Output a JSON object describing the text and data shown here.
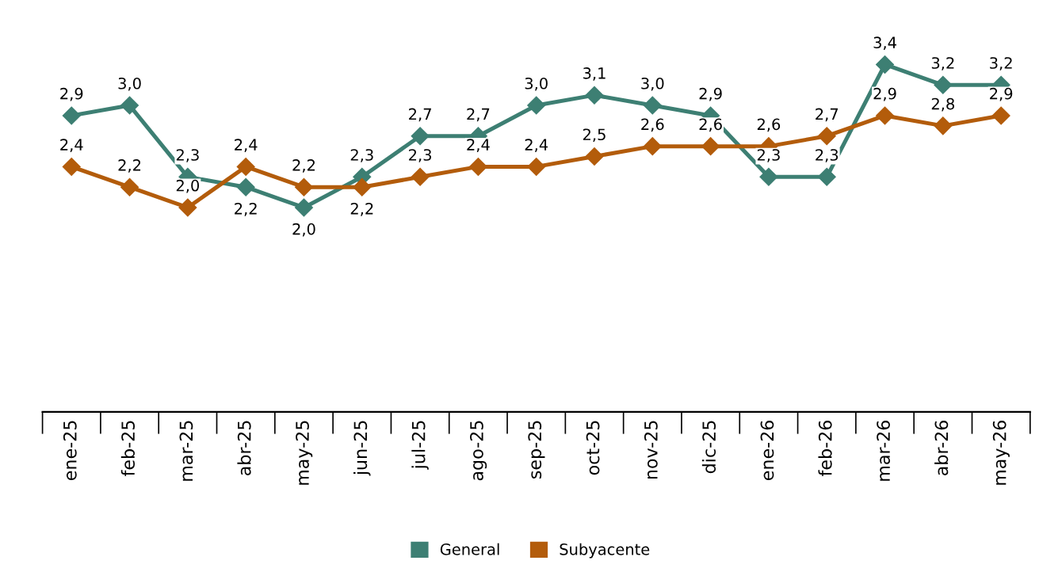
{
  "chart_data": {
    "type": "line",
    "categories": [
      "ene-25",
      "feb-25",
      "mar-25",
      "abr-25",
      "may-25",
      "jun-25",
      "jul-25",
      "ago-25",
      "sep-25",
      "oct-25",
      "nov-25",
      "dic-25",
      "ene-26",
      "feb-26",
      "mar-26",
      "abr-26",
      "may-26"
    ],
    "series": [
      {
        "name": "General",
        "color": "#3d7f73",
        "values": [
          2.9,
          3.0,
          2.3,
          2.2,
          2.0,
          2.3,
          2.7,
          2.7,
          3.0,
          3.1,
          3.0,
          2.9,
          2.3,
          2.3,
          3.4,
          3.2,
          3.2
        ],
        "value_labels": [
          "2,9",
          "3,0",
          "2,3",
          "2,2",
          "2,0",
          "2,3",
          "2,7",
          "2,7",
          "3,0",
          "3,1",
          "3,0",
          "2,9",
          "2,3",
          "2,3",
          "3,4",
          "3,2",
          "3,2"
        ]
      },
      {
        "name": "Subyacente",
        "color": "#b35c0b",
        "values": [
          2.4,
          2.2,
          2.0,
          2.4,
          2.2,
          2.2,
          2.3,
          2.4,
          2.4,
          2.5,
          2.6,
          2.6,
          2.6,
          2.7,
          2.9,
          2.8,
          2.9
        ],
        "value_labels": [
          "2,4",
          "2,2",
          "2,0",
          "2,4",
          "2,2",
          "2,2",
          "2,3",
          "2,4",
          "2,4",
          "2,5",
          "2,6",
          "2,6",
          "2,6",
          "2,7",
          "2,9",
          "2,8",
          "2,9"
        ]
      }
    ],
    "marker": "diamond",
    "line_style": "solid",
    "legend": "bottom",
    "grid": false,
    "tick_labels": "x"
  }
}
